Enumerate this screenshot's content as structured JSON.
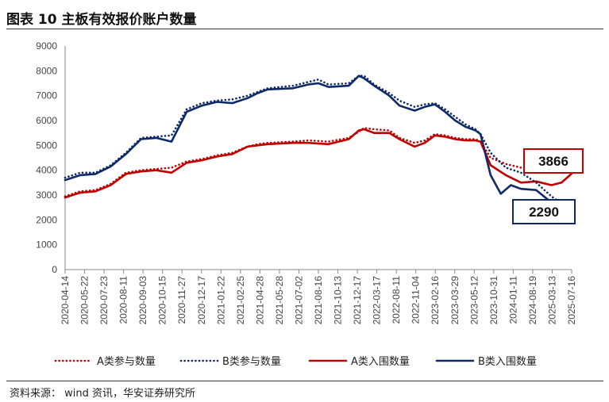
{
  "page": {
    "title": "图表 10 主板有效报价账户数量",
    "source": "资料来源：  wind 资讯，华安证券研究所"
  },
  "colors": {
    "red": "#c00000",
    "navy": "#0d2a66",
    "axis": "#888888"
  },
  "chart_data": {
    "type": "line",
    "title": "图表 10 主板有效报价账户数量",
    "ylim": [
      0,
      9000
    ],
    "yticks": [
      0,
      1000,
      2000,
      3000,
      4000,
      5000,
      6000,
      7000,
      8000,
      9000
    ],
    "x_tick_labels": [
      "2020-04-14",
      "2020-05-22",
      "2020-07-23",
      "2020-08-11",
      "2020-09-03",
      "2020-10-15",
      "2020-11-27",
      "2020-12-17",
      "2021-01-22",
      "2021-02-25",
      "2021-04-28",
      "2021-05-28",
      "2021-07-02",
      "2021-08-16",
      "2021-10-13",
      "2021-12-17",
      "2022-03-17",
      "2022-08-11",
      "2022-11-04",
      "2023-02-16",
      "2023-03-29",
      "2023-05-12",
      "2023-10-31",
      "2024-01-11",
      "2024-08-19",
      "2025-03-13",
      "2025-07-16"
    ],
    "x_range": [
      0,
      100
    ],
    "legend_position": "bottom",
    "series": [
      {
        "name": "A类参与数量",
        "style": "dotted",
        "color": "#c00000",
        "points": [
          [
            0,
            2950
          ],
          [
            3,
            3150
          ],
          [
            6,
            3200
          ],
          [
            9,
            3450
          ],
          [
            12,
            3900
          ],
          [
            15,
            4000
          ],
          [
            18,
            4050
          ],
          [
            21,
            4100
          ],
          [
            24,
            4350
          ],
          [
            27,
            4450
          ],
          [
            30,
            4600
          ],
          [
            33,
            4700
          ],
          [
            36,
            4950
          ],
          [
            38,
            5050
          ],
          [
            40,
            5100
          ],
          [
            45,
            5150
          ],
          [
            48,
            5200
          ],
          [
            52,
            5150
          ],
          [
            56,
            5300
          ],
          [
            58,
            5550
          ],
          [
            59,
            5700
          ],
          [
            61,
            5650
          ],
          [
            64,
            5600
          ],
          [
            66,
            5300
          ],
          [
            69,
            5100
          ],
          [
            71,
            5200
          ],
          [
            73,
            5450
          ],
          [
            75,
            5400
          ],
          [
            77,
            5300
          ],
          [
            79,
            5250
          ],
          [
            81,
            5250
          ],
          [
            82,
            5150
          ],
          [
            84,
            4500
          ],
          [
            87,
            4250
          ],
          [
            90,
            4100
          ],
          [
            93,
            4000
          ],
          [
            96,
            3900
          ],
          [
            98,
            3950
          ],
          [
            100,
            4050
          ]
        ]
      },
      {
        "name": "B类参与数量",
        "style": "dotted",
        "color": "#0d2a66",
        "points": [
          [
            0,
            3700
          ],
          [
            3,
            3900
          ],
          [
            6,
            3900
          ],
          [
            9,
            4200
          ],
          [
            12,
            4700
          ],
          [
            15,
            5300
          ],
          [
            18,
            5350
          ],
          [
            21,
            5400
          ],
          [
            24,
            6450
          ],
          [
            27,
            6700
          ],
          [
            30,
            6800
          ],
          [
            33,
            6850
          ],
          [
            36,
            7000
          ],
          [
            38,
            7150
          ],
          [
            40,
            7300
          ],
          [
            45,
            7400
          ],
          [
            48,
            7550
          ],
          [
            50,
            7650
          ],
          [
            52,
            7450
          ],
          [
            56,
            7500
          ],
          [
            58,
            7800
          ],
          [
            59,
            7800
          ],
          [
            61,
            7450
          ],
          [
            64,
            7100
          ],
          [
            66,
            6800
          ],
          [
            69,
            6550
          ],
          [
            71,
            6650
          ],
          [
            73,
            6700
          ],
          [
            75,
            6450
          ],
          [
            77,
            6150
          ],
          [
            79,
            5850
          ],
          [
            81,
            5650
          ],
          [
            82,
            5450
          ],
          [
            84,
            4700
          ],
          [
            87,
            4100
          ],
          [
            90,
            3900
          ],
          [
            93,
            3500
          ],
          [
            96,
            2950
          ],
          [
            98,
            2650
          ],
          [
            100,
            2450
          ]
        ]
      },
      {
        "name": "A类入围数量",
        "style": "solid",
        "color": "#c00000",
        "points": [
          [
            0,
            2900
          ],
          [
            3,
            3100
          ],
          [
            6,
            3150
          ],
          [
            9,
            3400
          ],
          [
            12,
            3850
          ],
          [
            15,
            3950
          ],
          [
            18,
            4000
          ],
          [
            21,
            3900
          ],
          [
            24,
            4300
          ],
          [
            27,
            4400
          ],
          [
            30,
            4550
          ],
          [
            33,
            4650
          ],
          [
            36,
            4950
          ],
          [
            38,
            5000
          ],
          [
            40,
            5050
          ],
          [
            45,
            5100
          ],
          [
            48,
            5100
          ],
          [
            52,
            5050
          ],
          [
            56,
            5250
          ],
          [
            58,
            5600
          ],
          [
            59,
            5650
          ],
          [
            61,
            5500
          ],
          [
            64,
            5500
          ],
          [
            66,
            5250
          ],
          [
            69,
            4950
          ],
          [
            71,
            5100
          ],
          [
            73,
            5400
          ],
          [
            75,
            5350
          ],
          [
            77,
            5250
          ],
          [
            79,
            5200
          ],
          [
            81,
            5200
          ],
          [
            82,
            5150
          ],
          [
            84,
            4200
          ],
          [
            87,
            3800
          ],
          [
            90,
            3500
          ],
          [
            93,
            3550
          ],
          [
            96,
            3400
          ],
          [
            98,
            3500
          ],
          [
            100,
            3866
          ]
        ]
      },
      {
        "name": "B类入围数量",
        "style": "solid",
        "color": "#0d2a66",
        "points": [
          [
            0,
            3600
          ],
          [
            3,
            3800
          ],
          [
            6,
            3850
          ],
          [
            9,
            4150
          ],
          [
            12,
            4650
          ],
          [
            15,
            5250
          ],
          [
            18,
            5300
          ],
          [
            21,
            5150
          ],
          [
            24,
            6350
          ],
          [
            27,
            6600
          ],
          [
            30,
            6750
          ],
          [
            33,
            6700
          ],
          [
            36,
            6900
          ],
          [
            38,
            7100
          ],
          [
            40,
            7250
          ],
          [
            45,
            7300
          ],
          [
            48,
            7450
          ],
          [
            50,
            7500
          ],
          [
            52,
            7350
          ],
          [
            56,
            7400
          ],
          [
            58,
            7800
          ],
          [
            59,
            7700
          ],
          [
            61,
            7400
          ],
          [
            64,
            7000
          ],
          [
            66,
            6600
          ],
          [
            69,
            6400
          ],
          [
            71,
            6550
          ],
          [
            73,
            6650
          ],
          [
            75,
            6350
          ],
          [
            77,
            6000
          ],
          [
            79,
            5750
          ],
          [
            81,
            5600
          ],
          [
            82,
            5450
          ],
          [
            84,
            3800
          ],
          [
            86,
            3050
          ],
          [
            88,
            3400
          ],
          [
            90,
            3250
          ],
          [
            93,
            3200
          ],
          [
            96,
            2700
          ],
          [
            98,
            2350
          ],
          [
            100,
            2290
          ]
        ]
      }
    ],
    "annotations": [
      {
        "label": "3866",
        "series": "A类入围数量",
        "value": 3866,
        "color": "#c00000"
      },
      {
        "label": "2290",
        "series": "B类入围数量",
        "value": 2290,
        "color": "#0d2a66"
      }
    ]
  }
}
